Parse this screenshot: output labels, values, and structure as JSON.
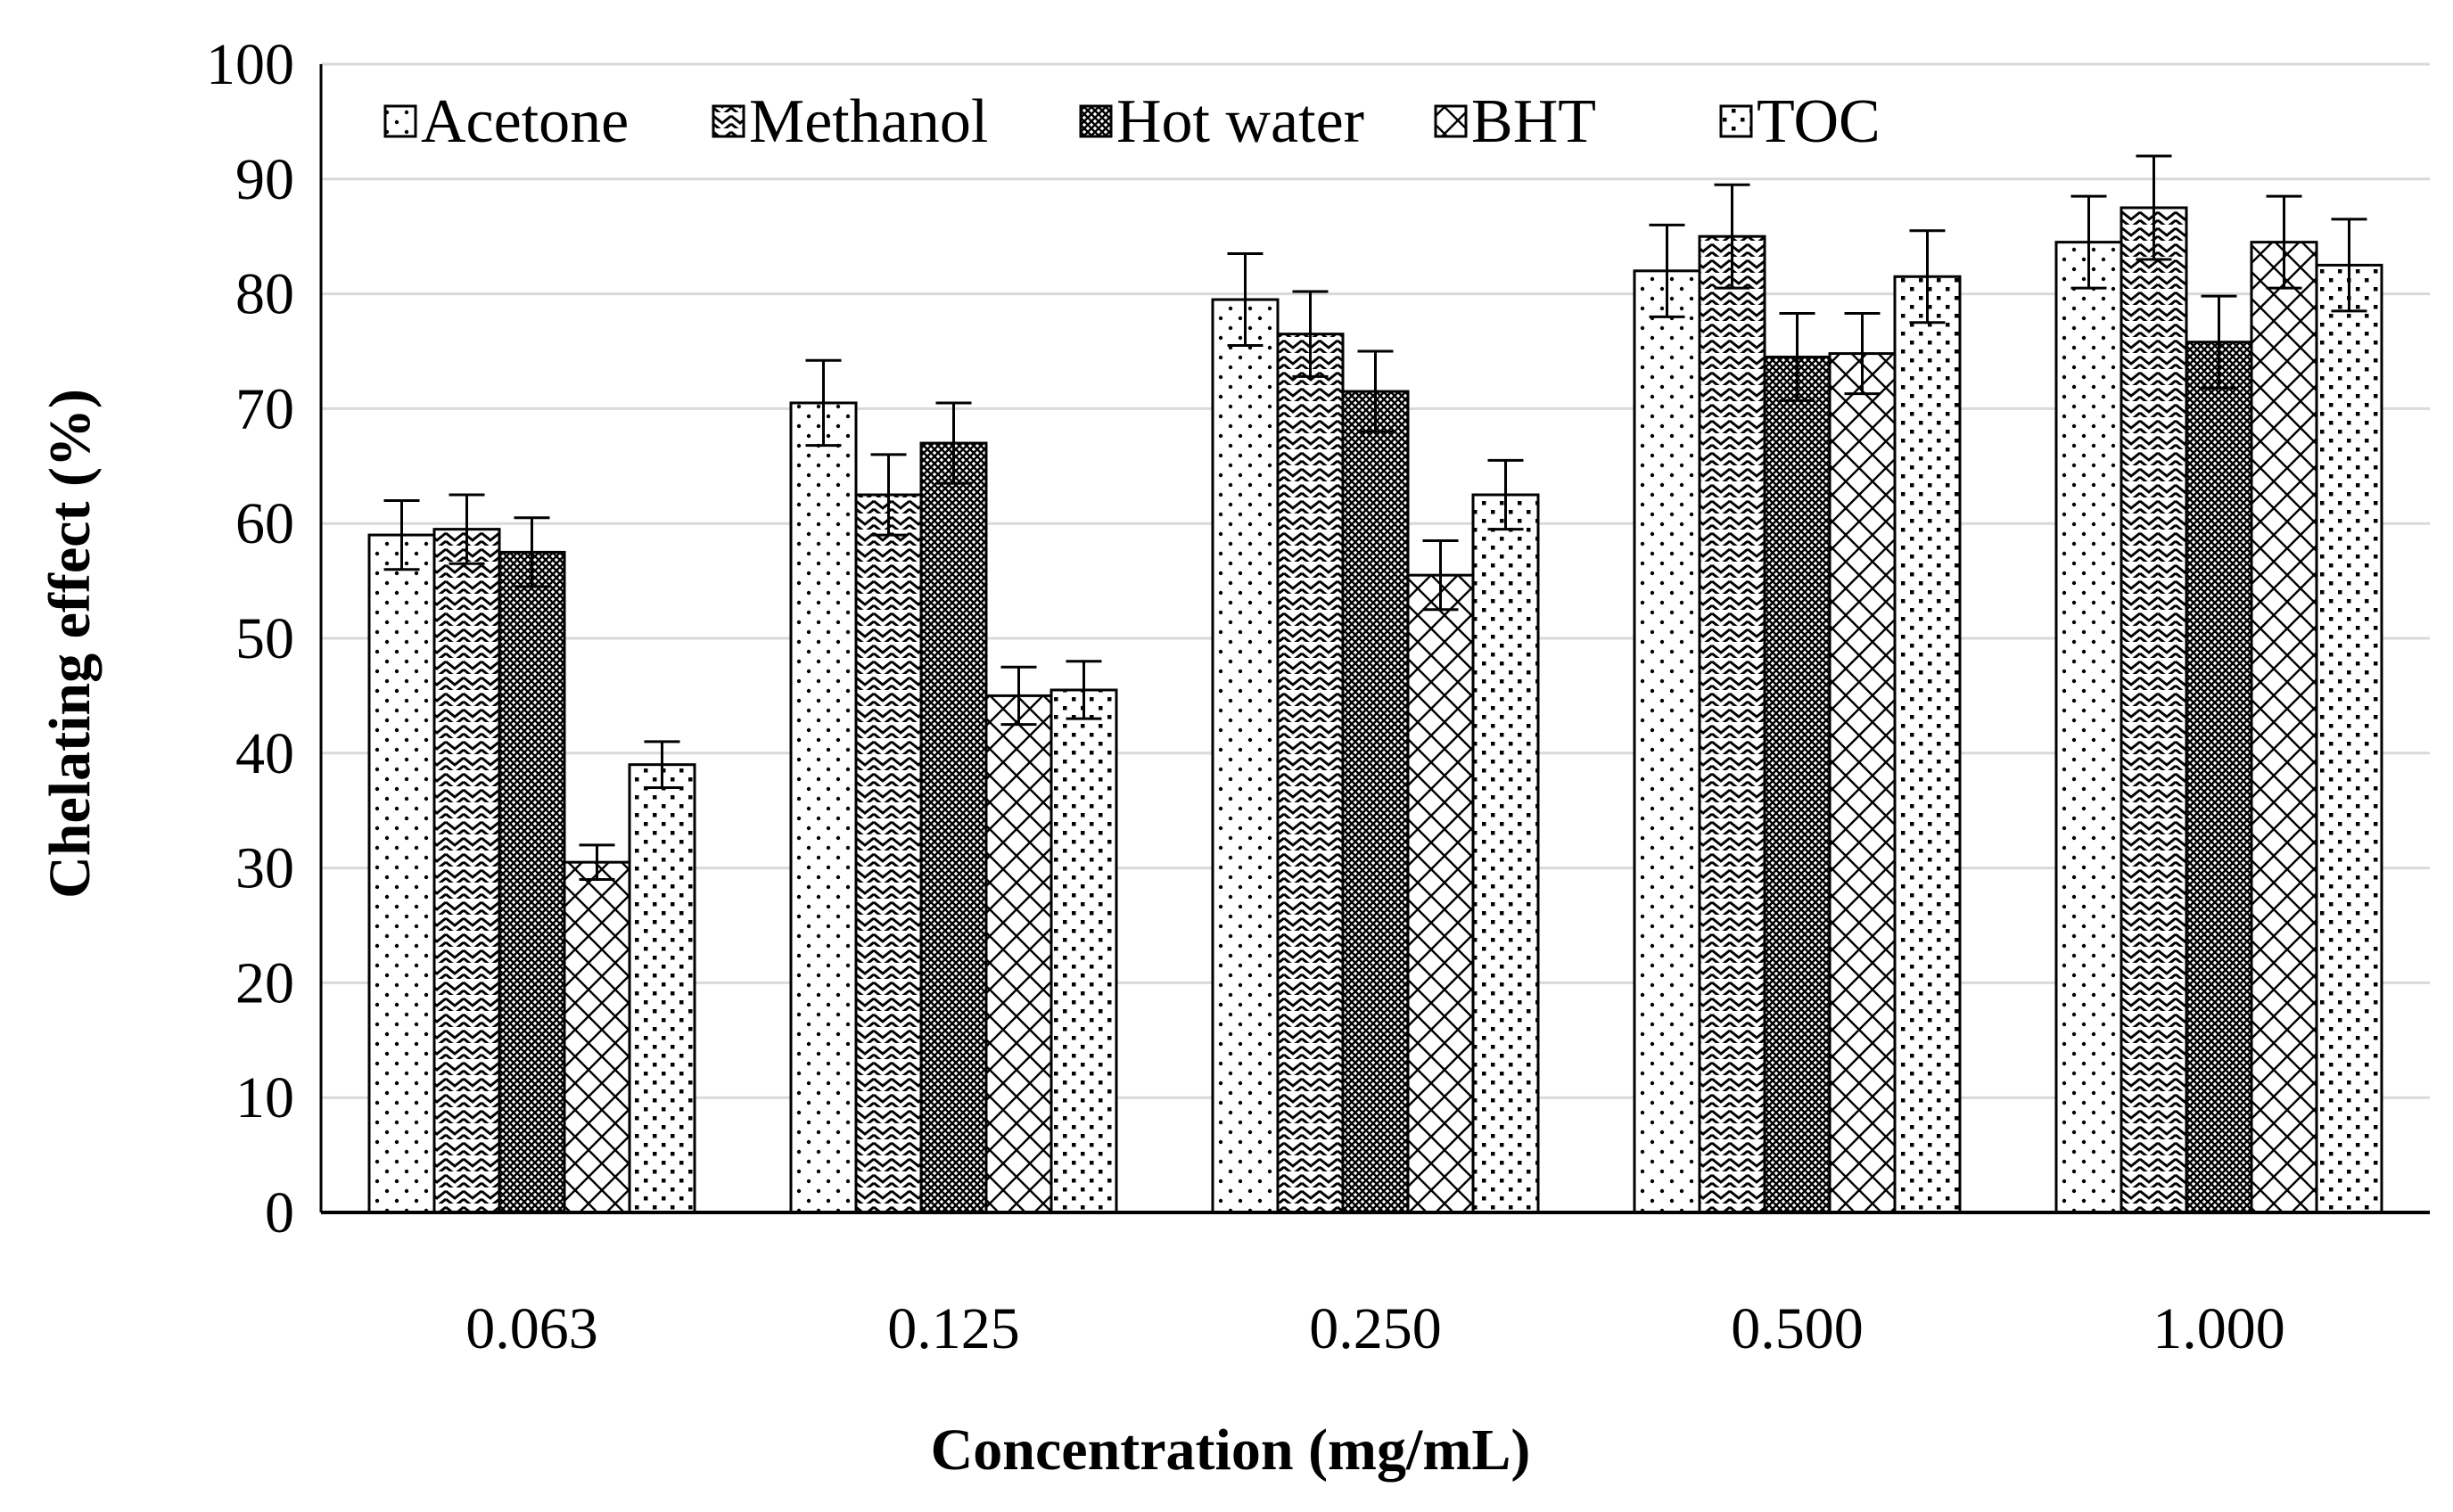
{
  "chart_data": {
    "type": "bar",
    "title": "",
    "xlabel": "Concentration (mg/mL)",
    "ylabel": "Chelating effect (%)",
    "ylim": [
      0,
      100
    ],
    "yticks": [
      "0",
      "10",
      "20",
      "30",
      "40",
      "50",
      "60",
      "70",
      "80",
      "90",
      "100"
    ],
    "grid": true,
    "legend_position": "top-left",
    "categories": [
      "0.063",
      "0.125",
      "0.250",
      "0.500",
      "1.000"
    ],
    "series": [
      {
        "name": "Acetone",
        "pattern": "dots-sparse",
        "values": [
          59.0,
          70.5,
          79.5,
          82.0,
          84.5
        ],
        "errors": [
          3.0,
          3.7,
          4.0,
          4.0,
          4.0
        ]
      },
      {
        "name": "Methanol",
        "pattern": "zigzag",
        "values": [
          59.5,
          62.5,
          76.5,
          85.0,
          87.5
        ],
        "errors": [
          3.0,
          3.5,
          3.7,
          4.5,
          4.5
        ]
      },
      {
        "name": "Hot water",
        "pattern": "dense-hatch",
        "values": [
          57.5,
          67.0,
          71.5,
          74.5,
          75.8
        ],
        "errors": [
          3.0,
          3.5,
          3.5,
          3.8,
          4.0
        ]
      },
      {
        "name": "BHT",
        "pattern": "crosshatch",
        "values": [
          30.5,
          45.0,
          55.5,
          74.8,
          84.5
        ],
        "errors": [
          1.5,
          2.5,
          3.0,
          3.5,
          4.0
        ]
      },
      {
        "name": "TOC",
        "pattern": "checker-dots",
        "values": [
          39.0,
          45.5,
          62.5,
          81.5,
          82.5
        ],
        "errors": [
          2.0,
          2.5,
          3.0,
          4.0,
          4.0
        ]
      }
    ]
  },
  "colors": {
    "background": "#ffffff",
    "gridline": "#d9d9d9",
    "bar_outline": "#000000",
    "pattern_ink": "#000000"
  }
}
